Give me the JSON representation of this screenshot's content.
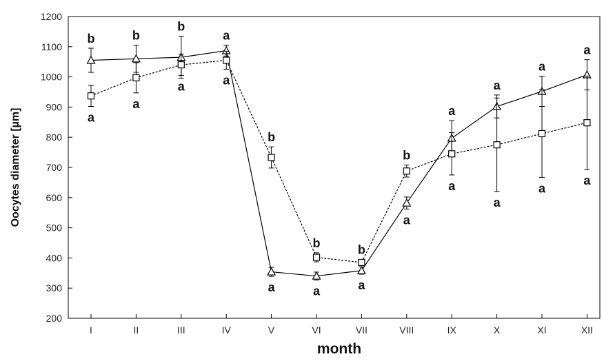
{
  "chart_data": {
    "type": "line",
    "xlabel": "month",
    "ylabel": "Oocytes diameter [µm]",
    "categories": [
      "I",
      "II",
      "III",
      "IV",
      "V",
      "VI",
      "VII",
      "VIII",
      "IX",
      "X",
      "XI",
      "XII"
    ],
    "ylim": [
      200,
      1200
    ],
    "yticks": [
      200,
      300,
      400,
      500,
      600,
      700,
      800,
      900,
      1000,
      1100,
      1200
    ],
    "grid": false,
    "series": [
      {
        "marker": "triangle",
        "line_style": "solid",
        "values": [
          1055,
          1060,
          1065,
          1087,
          354,
          340,
          358,
          582,
          797,
          902,
          952,
          1007
        ],
        "errors": [
          40,
          45,
          70,
          18,
          15,
          13,
          12,
          20,
          58,
          38,
          50,
          50
        ],
        "labels": [
          "b",
          "b",
          "b",
          "a",
          "a",
          "a",
          "a",
          "a",
          "a",
          "a",
          "a",
          "a"
        ]
      },
      {
        "marker": "square",
        "line_style": "dashed",
        "values": [
          937,
          997,
          1040,
          1055,
          733,
          402,
          385,
          688,
          745,
          775,
          812,
          848
        ],
        "errors": [
          35,
          50,
          35,
          30,
          35,
          15,
          10,
          20,
          70,
          155,
          145,
          155
        ],
        "labels": [
          "a",
          "a",
          "a",
          "a",
          "b",
          "b",
          "b",
          "b",
          "a",
          "a",
          "a",
          "a"
        ]
      }
    ]
  }
}
